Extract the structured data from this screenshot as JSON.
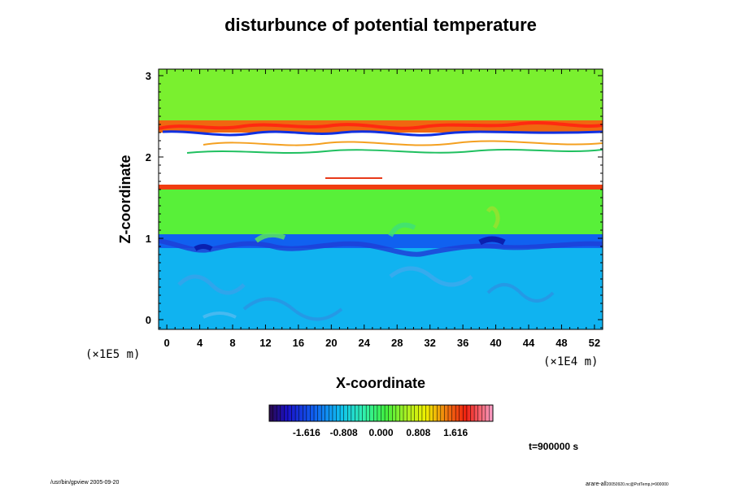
{
  "chart_data": {
    "type": "heatmap",
    "title": "disturbunce of potential temperature",
    "xlabel": "X-coordinate",
    "ylabel": "Z-coordinate",
    "x_unit": "(×1E4 m)",
    "y_unit": "(×1E5 m)",
    "xlim": [
      -1,
      53
    ],
    "ylim": [
      -0.12,
      3.08
    ],
    "x_ticks": [
      0,
      4,
      8,
      12,
      16,
      20,
      24,
      28,
      32,
      36,
      40,
      44,
      48,
      52
    ],
    "y_ticks": [
      0,
      1,
      2,
      3
    ],
    "colorbar": {
      "min": -2.424,
      "max": 2.424,
      "ticks": [
        -1.616,
        -0.808,
        0.0,
        0.808,
        1.616
      ],
      "tick_labels": [
        "-1.616",
        "-0.808",
        "0.000",
        "0.808",
        "1.616"
      ],
      "colormap": "rainbow (purple-blue-cyan-green-yellow-red-pink)"
    },
    "field_bands": [
      {
        "z_range": [
          -0.12,
          0.88
        ],
        "value": -0.95
      },
      {
        "z_range": [
          0.88,
          1.05
        ],
        "value": -1.45
      },
      {
        "z_range": [
          1.05,
          1.6
        ],
        "value": 0.2
      },
      {
        "z_range": [
          1.6,
          1.66
        ],
        "value": 1.7
      },
      {
        "z_range": [
          1.66,
          2.3
        ],
        "value": null
      },
      {
        "z_range": [
          2.3,
          2.45
        ],
        "value": 1.5
      },
      {
        "z_range": [
          2.45,
          3.08
        ],
        "value": 0.35
      }
    ]
  },
  "annotations": {
    "time": "t=900000 s",
    "footer_left": "/usr/bin/gpview 2005-09-20",
    "footer_right_main": "arare-all",
    "footer_right_sub": "20050920.nc@PotTemp,t=900000"
  }
}
